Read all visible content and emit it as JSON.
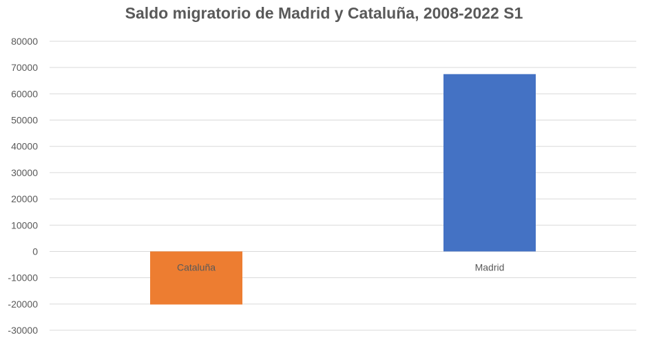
{
  "chart_data": {
    "type": "bar",
    "title": "Saldo migratorio de Madrid y Cataluña, 2008-2022 S1",
    "xlabel": "",
    "ylabel": "",
    "categories": [
      "Cataluña",
      "Madrid"
    ],
    "values": [
      -20200,
      67500
    ],
    "colors": [
      "#ED7D31",
      "#4472C4"
    ],
    "ylim": [
      -30000,
      80000
    ],
    "yticks": [
      "80000",
      "70000",
      "60000",
      "50000",
      "40000",
      "30000",
      "20000",
      "10000",
      "0",
      "-10000",
      "-20000",
      "-30000"
    ],
    "grid": true,
    "legend": "none"
  }
}
